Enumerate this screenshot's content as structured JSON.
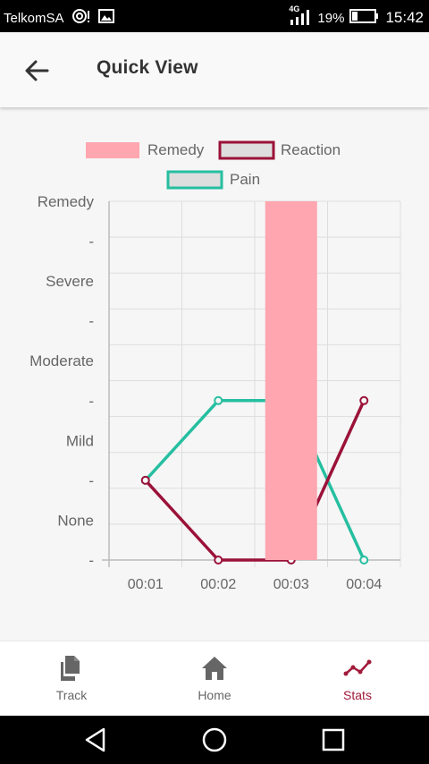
{
  "status_bar": {
    "carrier": "TelkomSA",
    "network": "4G",
    "battery": "19%",
    "time": "15:42"
  },
  "app_bar": {
    "title": "Quick View"
  },
  "chart_data": {
    "type": "line",
    "legend": [
      {
        "name": "Remedy",
        "color": "#ffa6b0"
      },
      {
        "name": "Reaction",
        "color": "#9b1239"
      },
      {
        "name": "Pain",
        "color": "#26bfa0"
      }
    ],
    "categories": [
      "00:01",
      "00:02",
      "00:03",
      "00:04"
    ],
    "y_tick_labels": [
      "-",
      "None",
      "-",
      "Mild",
      "-",
      "Moderate",
      "-",
      "Severe",
      "-",
      "Remedy"
    ],
    "ylim": [
      0,
      10
    ],
    "series": [
      {
        "name": "Pain",
        "type": "line",
        "color": "#26bfa0",
        "values": [
          2,
          4,
          4,
          0
        ]
      },
      {
        "name": "Reaction",
        "type": "line",
        "color": "#9b1239",
        "values": [
          2,
          0,
          0,
          4
        ]
      },
      {
        "name": "Remedy",
        "type": "bar",
        "color": "#ffa6b0",
        "values": [
          0,
          0,
          10,
          0
        ]
      }
    ],
    "grid": true
  },
  "bottom_nav": {
    "items": [
      {
        "label": "Track",
        "icon": "documents-icon"
      },
      {
        "label": "Home",
        "icon": "home-icon"
      },
      {
        "label": "Stats",
        "icon": "trend-line-icon",
        "active": true
      }
    ]
  },
  "system_nav": {
    "icons": [
      "back-triangle-icon",
      "home-circle-icon",
      "recents-square-icon"
    ]
  }
}
